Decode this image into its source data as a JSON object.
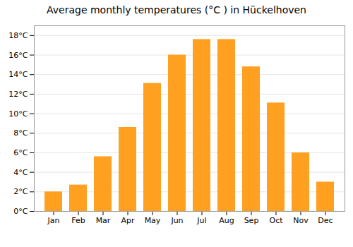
{
  "chart_data": {
    "type": "bar",
    "title": "Average monthly temperatures (°C ) in Hückelhoven",
    "categories": [
      "Jan",
      "Feb",
      "Mar",
      "Apr",
      "May",
      "Jun",
      "Jul",
      "Aug",
      "Sep",
      "Oct",
      "Nov",
      "Dec"
    ],
    "values": [
      2.0,
      2.7,
      5.6,
      8.6,
      13.1,
      16.0,
      17.6,
      17.6,
      14.8,
      11.1,
      6.0,
      3.0
    ],
    "color": "#FFA020",
    "ylim": [
      0,
      19
    ],
    "yticks": [
      {
        "value": 0,
        "label": "0°C"
      },
      {
        "value": 2,
        "label": "2°C"
      },
      {
        "value": 4,
        "label": "4°C"
      },
      {
        "value": 6,
        "label": "6°C"
      },
      {
        "value": 8,
        "label": "8°C"
      },
      {
        "value": 10,
        "label": "10°C"
      },
      {
        "value": 12,
        "label": "12°C"
      },
      {
        "value": 14,
        "label": "14°C"
      },
      {
        "value": 16,
        "label": "16°C"
      },
      {
        "value": 18,
        "label": "18°C"
      }
    ],
    "grid": true
  }
}
